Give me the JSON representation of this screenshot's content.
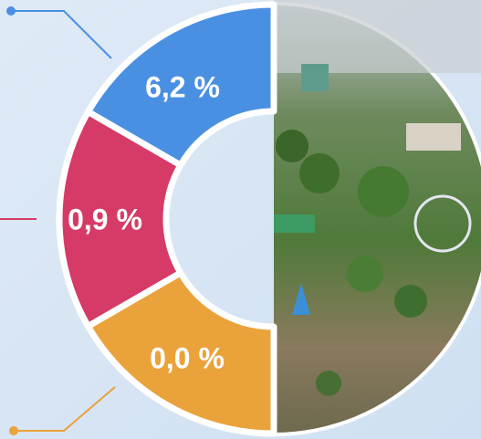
{
  "segments": [
    {
      "label": "6,2 %",
      "color": "#4a90e2"
    },
    {
      "label": "0,9 %",
      "color": "#d63a66"
    },
    {
      "label": "0,0 %",
      "color": "#eaa23a"
    }
  ]
}
